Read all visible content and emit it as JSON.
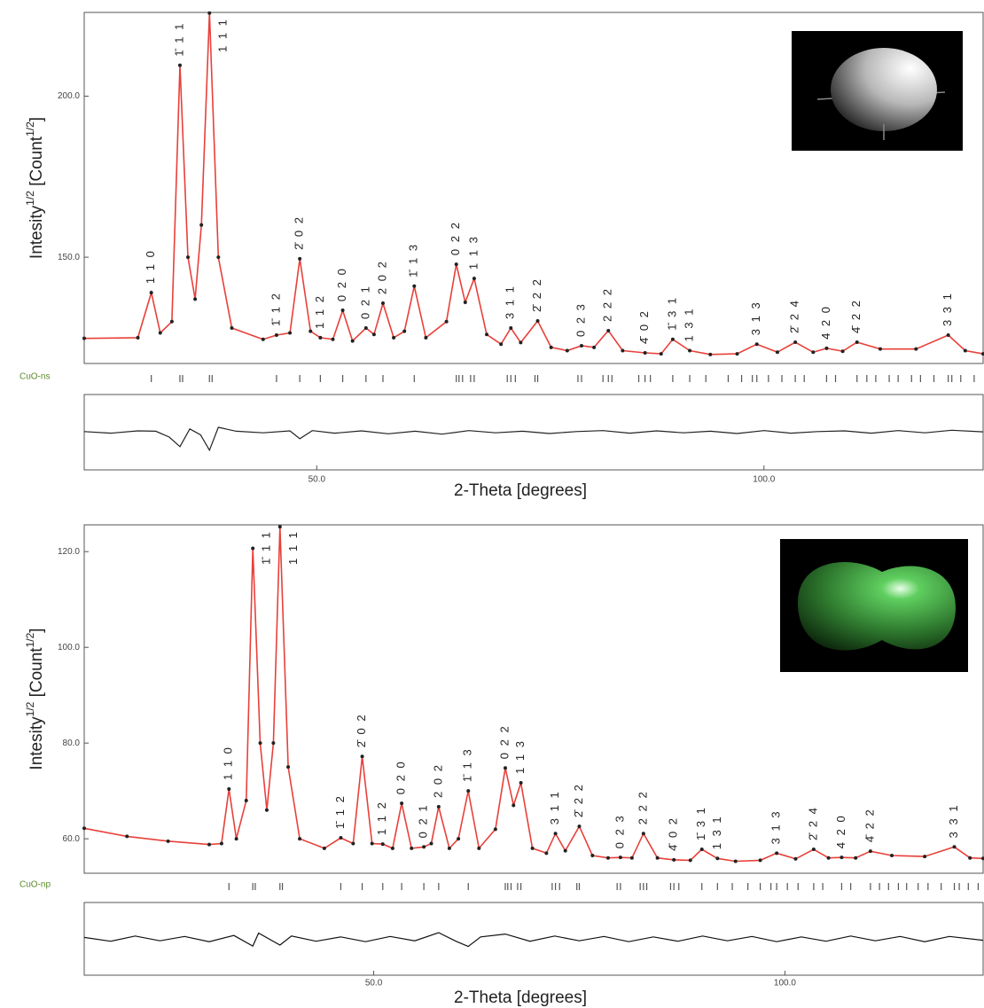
{
  "chart_data": [
    {
      "type": "line",
      "phase": "CuO-ns",
      "ylabel_parts": [
        "Intesity",
        "1/2",
        " [Count",
        "1/2",
        "]"
      ],
      "xlabel": "2-Theta [degrees]",
      "xlim": [
        24,
        124.5
      ],
      "ylim": [
        117,
        226
      ],
      "xticks": [
        {
          "value": 50,
          "label": "50.0"
        },
        {
          "value": 100,
          "label": "100.0"
        }
      ],
      "yticks": [
        {
          "value": 150,
          "label": "150.0"
        },
        {
          "value": 200,
          "label": "200.0"
        }
      ],
      "x": [
        24,
        30,
        31.5,
        32.5,
        33.8,
        34.7,
        35.6,
        36.4,
        37.1,
        38.0,
        39.0,
        40.5,
        44,
        45.5,
        47,
        48.1,
        49.3,
        50.4,
        51.8,
        52.9,
        54,
        55.5,
        56.4,
        57.4,
        58.6,
        59.8,
        60.9,
        62.2,
        64.5,
        65.6,
        66.6,
        67.6,
        69,
        70.6,
        71.7,
        72.8,
        74.7,
        76.2,
        78,
        79.6,
        81,
        82.6,
        84.2,
        86.7,
        88.5,
        89.8,
        91.7,
        94,
        97,
        99.2,
        101.5,
        103.5,
        105.5,
        107,
        108.8,
        110.4,
        113,
        117,
        120.6,
        122.5,
        124.5
      ],
      "series": [
        {
          "color": "#e8403a",
          "marker": "line",
          "values": [
            124.8,
            125,
            139,
            126.5,
            130,
            209.6,
            150,
            137,
            160,
            225.8,
            150,
            128,
            124.5,
            125.8,
            126.5,
            149.5,
            127,
            125,
            124.5,
            133.5,
            124,
            128,
            126,
            135.7,
            125,
            127,
            141,
            125,
            130,
            147.8,
            136,
            143.4,
            126,
            123,
            128,
            123.5,
            130.2,
            122,
            121,
            122.5,
            122,
            127.2,
            121,
            120.3,
            120,
            124.5,
            121,
            119.8,
            120,
            123,
            120.5,
            123.6,
            120.5,
            121.7,
            120.8,
            123.6,
            121.5,
            121.5,
            125.8,
            121,
            120
          ]
        },
        {
          "color": "#222222",
          "marker": "point",
          "values": [
            124.8,
            125,
            139,
            126.5,
            130,
            209.6,
            150,
            137,
            160,
            225.8,
            150,
            128,
            124.5,
            125.8,
            126.5,
            149.5,
            127,
            125,
            124.5,
            133.5,
            124,
            128,
            126,
            135.7,
            125,
            127,
            141,
            125,
            130,
            147.8,
            136,
            143.4,
            126,
            123,
            128,
            123.5,
            130.2,
            122,
            121,
            122.5,
            122,
            127.2,
            121,
            120.3,
            120,
            124.5,
            121,
            119.8,
            120,
            123,
            120.5,
            123.6,
            120.5,
            121.7,
            120.8,
            123.6,
            121.5,
            121.5,
            125.8,
            121,
            120
          ]
        }
      ],
      "annotations": [
        {
          "text": "1 1 0",
          "x": 31.5
        },
        {
          "text": "1̄ 1 1",
          "x": 34.7
        },
        {
          "text": "1 1 1",
          "x": 38.0
        },
        {
          "text": "1̄ 1 2",
          "x": 45.5
        },
        {
          "text": "2̄ 0 2",
          "x": 48.1
        },
        {
          "text": "1 1 2",
          "x": 50.4
        },
        {
          "text": "0 2 0",
          "x": 52.9
        },
        {
          "text": "0 2 1",
          "x": 55.5
        },
        {
          "text": "2 0 2",
          "x": 57.4
        },
        {
          "text": "1̄ 1 3",
          "x": 60.9
        },
        {
          "text": "0 2 2",
          "x": 65.6
        },
        {
          "text": "1 1 3",
          "x": 67.6
        },
        {
          "text": "3 1 1",
          "x": 71.7
        },
        {
          "text": "2̄ 2 2",
          "x": 74.7
        },
        {
          "text": "0 2 3",
          "x": 79.6
        },
        {
          "text": "2 2 2",
          "x": 82.6
        },
        {
          "text": "4̄ 0 2",
          "x": 86.7
        },
        {
          "text": "1̄ 3 1",
          "x": 89.8
        },
        {
          "text": "1 3 1",
          "x": 91.7
        },
        {
          "text": "3 1 3",
          "x": 99.2
        },
        {
          "text": "2̄ 2 4",
          "x": 103.5
        },
        {
          "text": "4 2 0",
          "x": 107.0
        },
        {
          "text": "4̄ 2 2",
          "x": 110.4
        },
        {
          "text": "3 3 1",
          "x": 120.6
        }
      ],
      "reflections": [
        31.5,
        34.7,
        35.0,
        38.0,
        38.3,
        45.5,
        48.1,
        50.4,
        52.9,
        55.5,
        57.4,
        60.9,
        65.6,
        65.9,
        66.3,
        67.2,
        67.6,
        71.3,
        71.7,
        72.2,
        74.4,
        74.7,
        79.2,
        79.6,
        82.0,
        82.6,
        83.0,
        86.0,
        86.7,
        87.3,
        89.8,
        91.7,
        93.5,
        96,
        97.5,
        98.7,
        99.2,
        100.5,
        102,
        103.5,
        104.5,
        107.0,
        108,
        110.4,
        111.5,
        112.5,
        114,
        115,
        116.5,
        117.5,
        119,
        120.6,
        121,
        122,
        123.5
      ],
      "difference": {
        "color": "#222222",
        "ylim": [
          -11.5,
          11.5
        ],
        "x": [
          24,
          27,
          30,
          32,
          33.5,
          34.7,
          35.8,
          37,
          38,
          39,
          41,
          44,
          47,
          48.1,
          49.5,
          52,
          55,
          58,
          61,
          64,
          67,
          70,
          73,
          76,
          79,
          82,
          85,
          88,
          91,
          94,
          97,
          100,
          103,
          106,
          109,
          112,
          115,
          118,
          121,
          124.5
        ],
        "values": [
          0.2,
          -0.3,
          0.4,
          0.3,
          -1.5,
          -4.4,
          1,
          -0.8,
          -5.5,
          1.5,
          0.3,
          -0.2,
          0.4,
          -2,
          0.5,
          -0.3,
          0.4,
          -0.5,
          0.3,
          -0.6,
          0.5,
          -0.2,
          0.3,
          -0.4,
          0.2,
          0.5,
          -0.3,
          0.4,
          -0.2,
          0.3,
          -0.4,
          0.5,
          -0.3,
          0.2,
          0.4,
          -0.3,
          0.5,
          -0.2,
          0.6,
          0.1
        ]
      }
    },
    {
      "type": "line",
      "phase": "CuO-np",
      "ylabel_parts": [
        "Intesity",
        "1/2",
        " [Count",
        "1/2",
        "]"
      ],
      "xlabel": "2-Theta [degrees]",
      "xlim": [
        14.8,
        124.1
      ],
      "ylim": [
        52.8,
        125.6
      ],
      "xticks": [
        {
          "value": 50,
          "label": "50.0"
        },
        {
          "value": 100,
          "label": "100.0"
        }
      ],
      "yticks": [
        {
          "value": 60,
          "label": "60.0"
        },
        {
          "value": 80,
          "label": "80.0"
        },
        {
          "value": 100,
          "label": "100.0"
        },
        {
          "value": 120,
          "label": "120.0"
        }
      ],
      "x": [
        14.8,
        20,
        25,
        30,
        31.5,
        32.4,
        33.3,
        34.5,
        35.3,
        36.2,
        37,
        37.8,
        38.6,
        39.6,
        41,
        44,
        46,
        47.5,
        48.6,
        49.8,
        51.1,
        52.3,
        53.4,
        54.6,
        56.1,
        57,
        57.9,
        59.2,
        60.3,
        61.5,
        62.8,
        64.8,
        66,
        67,
        67.9,
        69.3,
        71,
        72.1,
        73.3,
        75,
        76.6,
        78.5,
        80,
        81.4,
        82.8,
        84.5,
        86.5,
        88.5,
        89.9,
        91.8,
        94,
        97,
        99,
        101.3,
        103.5,
        105.3,
        106.9,
        108.6,
        110.4,
        113,
        117,
        120.6,
        122.5,
        124.1
      ],
      "series": [
        {
          "color": "#e8403a",
          "marker": "line",
          "values": [
            62.2,
            60.5,
            59.5,
            58.8,
            59,
            70.4,
            60,
            68,
            120.7,
            80,
            66,
            80,
            125.2,
            75,
            60,
            58,
            60.2,
            59,
            77.2,
            59,
            58.9,
            58,
            67.4,
            58,
            58.3,
            59,
            66.7,
            58,
            60,
            70,
            58,
            62,
            74.8,
            67,
            71.7,
            58,
            57,
            61.1,
            57.5,
            62.6,
            56.5,
            56,
            56.1,
            56,
            61.1,
            56,
            55.6,
            55.5,
            57.8,
            55.9,
            55.3,
            55.5,
            57,
            55.8,
            57.8,
            56,
            56.1,
            56,
            57.4,
            56.5,
            56.3,
            58.3,
            56,
            55.9
          ]
        },
        {
          "color": "#222222",
          "marker": "point",
          "values": [
            62.2,
            60.5,
            59.5,
            58.8,
            59,
            70.4,
            60,
            68,
            120.7,
            80,
            66,
            80,
            125.2,
            75,
            60,
            58,
            60.2,
            59,
            77.2,
            59,
            58.9,
            58,
            67.4,
            58,
            58.3,
            59,
            66.7,
            58,
            60,
            70,
            58,
            62,
            74.8,
            67,
            71.7,
            58,
            57,
            61.1,
            57.5,
            62.6,
            56.5,
            56,
            56.1,
            56,
            61.1,
            56,
            55.6,
            55.5,
            57.8,
            55.9,
            55.3,
            55.5,
            57,
            55.8,
            57.8,
            56,
            56.1,
            56,
            57.4,
            56.5,
            56.3,
            58.3,
            56,
            55.9
          ]
        }
      ],
      "annotations": [
        {
          "text": "1 1 0",
          "x": 32.4
        },
        {
          "text": "1̄ 1 1",
          "x": 35.3
        },
        {
          "text": "1 1 1",
          "x": 38.6
        },
        {
          "text": "1̄ 1 2",
          "x": 46.0
        },
        {
          "text": "2̄ 0 2",
          "x": 48.6
        },
        {
          "text": "1 1 2",
          "x": 51.1
        },
        {
          "text": "0 2 0",
          "x": 53.4
        },
        {
          "text": "0 2 1",
          "x": 56.1
        },
        {
          "text": "2 0 2",
          "x": 57.9
        },
        {
          "text": "1̄ 1 3",
          "x": 61.5
        },
        {
          "text": "0 2 2",
          "x": 66.0
        },
        {
          "text": "1 1 3",
          "x": 67.9
        },
        {
          "text": "3 1 1",
          "x": 72.1
        },
        {
          "text": "2̄ 2 2",
          "x": 75.0
        },
        {
          "text": "0 2 3",
          "x": 80.0
        },
        {
          "text": "2 2 2",
          "x": 82.8
        },
        {
          "text": "4̄ 0 2",
          "x": 86.5
        },
        {
          "text": "1̄ 3 1",
          "x": 89.9
        },
        {
          "text": "1 3 1",
          "x": 91.8
        },
        {
          "text": "3 1 3",
          "x": 99.0
        },
        {
          "text": "2̄ 2 4",
          "x": 103.5
        },
        {
          "text": "4 2 0",
          "x": 106.9
        },
        {
          "text": "4̄ 2 2",
          "x": 110.4
        },
        {
          "text": "3 3 1",
          "x": 120.6
        }
      ],
      "reflections": [
        32.4,
        35.3,
        35.6,
        38.6,
        38.9,
        46.0,
        48.6,
        51.1,
        53.4,
        56.1,
        57.9,
        61.5,
        66.0,
        66.3,
        66.7,
        67.5,
        67.9,
        71.7,
        72.1,
        72.6,
        74.7,
        75.0,
        79.6,
        80.0,
        82.4,
        82.8,
        83.2,
        86.1,
        86.5,
        87.1,
        89.9,
        91.8,
        93.6,
        95.5,
        97,
        98.3,
        99.0,
        100.3,
        101.6,
        103.5,
        104.6,
        106.9,
        108,
        110.4,
        111.5,
        112.6,
        113.8,
        114.8,
        116.2,
        117.4,
        119,
        120.6,
        121.2,
        122.3,
        123.5
      ],
      "difference": {
        "color": "#111111",
        "ylim": [
          -7.6,
          7.6
        ],
        "x": [
          14.8,
          18,
          21,
          24,
          27,
          30,
          33,
          35.3,
          36,
          38.6,
          40,
          43,
          46,
          49,
          52,
          55,
          57.9,
          60,
          61.5,
          63,
          66,
          69,
          72,
          75,
          78,
          81,
          84,
          87,
          90,
          93,
          96,
          99,
          102,
          105,
          108,
          111,
          114,
          117,
          120,
          124.1
        ],
        "values": [
          0.3,
          -0.5,
          0.6,
          -0.4,
          0.5,
          -0.6,
          0.7,
          -1.5,
          1.2,
          -1.3,
          0.6,
          -0.5,
          0.4,
          -0.6,
          0.5,
          -0.4,
          1.3,
          -0.5,
          -1.6,
          0.4,
          1,
          -0.5,
          0.6,
          -0.4,
          0.5,
          -0.6,
          0.4,
          -0.5,
          0.6,
          -0.4,
          0.5,
          -0.6,
          0.4,
          -0.5,
          0.6,
          -0.4,
          0.5,
          -0.6,
          0.5,
          -0.3
        ]
      }
    }
  ]
}
